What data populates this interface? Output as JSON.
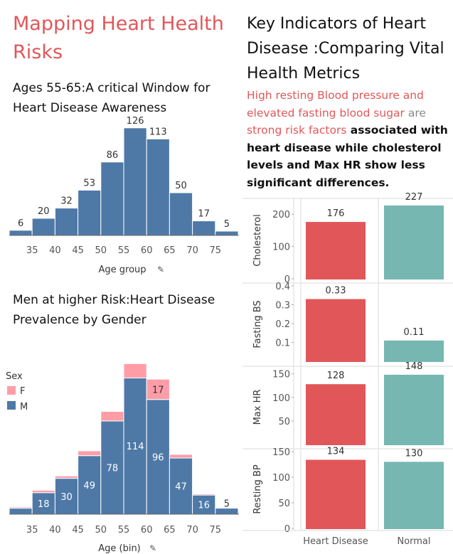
{
  "main_title": "Mapping Heart Health Risks",
  "hist_title": " Ages 55-65:A critical Window for Heart Disease Awareness",
  "gender_title": "Men at higher Risk:Heart Disease Prevalence by Gender",
  "key_title": "Key Indicators of Heart Disease :Comparing Vital Health Metrics",
  "key_text": {
    "part1": " High resting Blood pressure and elevated fasting blood sugar",
    "part2": " are ",
    "part3": "strong risk factors",
    "part4": " associated with heart disease while cholesterol levels and Max HR show less significant differences."
  },
  "colors": {
    "blue": "#4e79a7",
    "pink": "#ff9da7",
    "red": "#e15759",
    "teal": "#76b7b2",
    "title_red": "#e15759"
  },
  "chart_data": [
    {
      "type": "bar",
      "x": [
        30,
        35,
        40,
        45,
        50,
        55,
        60,
        65,
        70,
        75
      ],
      "values": [
        6,
        20,
        32,
        53,
        86,
        126,
        113,
        50,
        17,
        5
      ],
      "xticks": [
        "35",
        "40",
        "45",
        "50",
        "55",
        "60",
        "65",
        "70",
        "75"
      ],
      "xlabel": "Age group",
      "title": " Ages 55-65:A critical Window for Heart Disease Awareness"
    },
    {
      "type": "bar",
      "stacked": true,
      "x": [
        30,
        35,
        40,
        45,
        50,
        55,
        60,
        65,
        70,
        75
      ],
      "series": [
        {
          "name": "M",
          "values": [
            5,
            18,
            30,
            49,
            78,
            114,
            96,
            47,
            16,
            5
          ]
        },
        {
          "name": "F",
          "values": [
            1,
            2,
            2,
            4,
            8,
            12,
            17,
            3,
            1,
            0
          ]
        }
      ],
      "labels_M": [
        "",
        "18",
        "30",
        "49",
        "78",
        "114",
        "96",
        "47",
        "16",
        "5"
      ],
      "labels_F": [
        "",
        "",
        "",
        "",
        "",
        "",
        "17",
        "",
        "",
        ""
      ],
      "xticks": [
        "35",
        "40",
        "45",
        "50",
        "55",
        "60",
        "65",
        "70",
        "75"
      ],
      "xlabel": "Age (bin)",
      "legend": {
        "title": "Sex",
        "items": [
          "F",
          "M"
        ],
        "placement": "left"
      },
      "title": "Men at higher Risk:Heart Disease Prevalence by Gender"
    },
    {
      "type": "bar",
      "categories": [
        "Heart Disease",
        "Normal"
      ],
      "panels": [
        {
          "metric": "Cholesterol",
          "values": [
            176,
            227
          ],
          "labels": [
            "176",
            "227"
          ],
          "ylim": [
            0,
            240
          ],
          "ticks": [
            0,
            100,
            200
          ]
        },
        {
          "metric": "Fasting BS",
          "values": [
            0.33,
            0.11
          ],
          "labels": [
            "0.33",
            "0.11"
          ],
          "ylim": [
            0,
            0.4
          ],
          "ticks": [
            0.1,
            0.2,
            0.3,
            0.4
          ]
        },
        {
          "metric": "Max HR",
          "values": [
            128,
            148
          ],
          "labels": [
            "128",
            "148"
          ],
          "ylim": [
            0,
            160
          ],
          "ticks": [
            50,
            100,
            150
          ]
        },
        {
          "metric": "Resting BP",
          "values": [
            134,
            130
          ],
          "labels": [
            "134",
            "130"
          ],
          "ylim": [
            0,
            150
          ],
          "ticks": [
            0,
            50,
            100,
            150
          ]
        }
      ]
    }
  ]
}
